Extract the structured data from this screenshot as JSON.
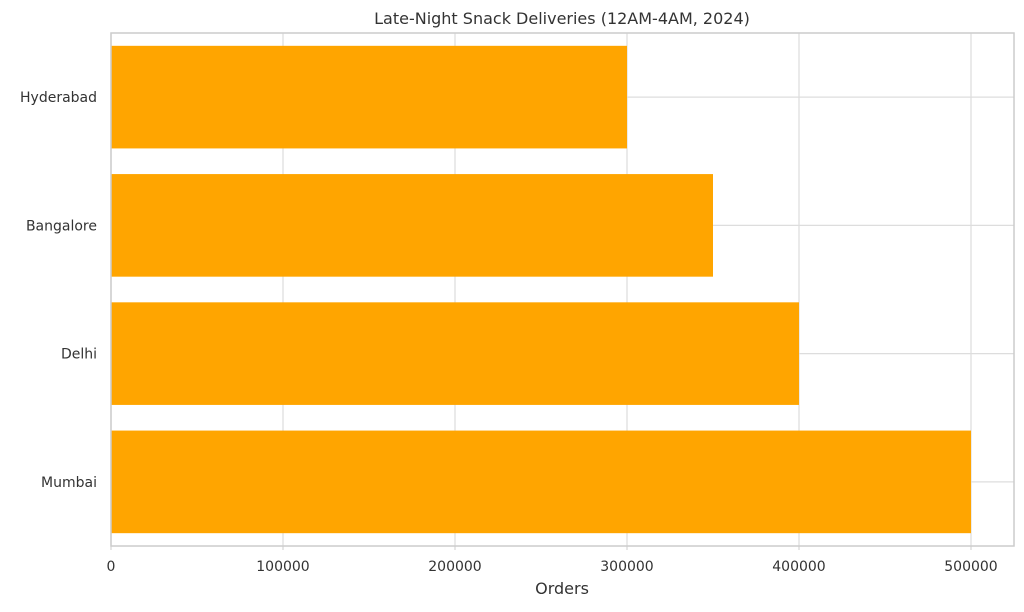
{
  "chart_data": {
    "type": "bar",
    "orientation": "horizontal",
    "title": "Late-Night Snack Deliveries (12AM-4AM, 2024)",
    "xlabel": "Orders",
    "ylabel": "",
    "categories": [
      "Mumbai",
      "Delhi",
      "Bangalore",
      "Hyderabad"
    ],
    "values": [
      500000,
      400000,
      350000,
      300000
    ],
    "xlim": [
      0,
      525000
    ],
    "xticks": [
      0,
      100000,
      200000,
      300000,
      400000,
      500000
    ],
    "xtick_labels": [
      "0",
      "100000",
      "200000",
      "300000",
      "400000",
      "500000"
    ],
    "grid": true,
    "bar_color": "#FFA500",
    "grid_color": "#DDDDDD",
    "axis_color": "#CCCCCC",
    "text_color": "#333333"
  }
}
